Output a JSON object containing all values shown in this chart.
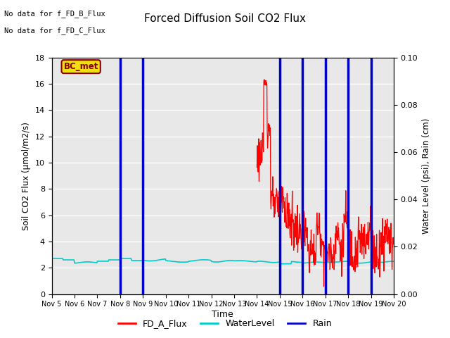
{
  "title": "Forced Diffusion Soil CO2 Flux",
  "xlabel": "Time",
  "ylabel_left": "Soil CO2 Flux (μmol/m2/s)",
  "ylabel_right": "Water Level (psi), Rain (cm)",
  "no_data_text_1": "No data for f_FD_B_Flux",
  "no_data_text_2": "No data for f_FD_C_Flux",
  "bc_met_label": "BC_met",
  "ylim_left": [
    0,
    18
  ],
  "ylim_right": [
    0.0,
    0.1
  ],
  "yticks_left": [
    0,
    2,
    4,
    6,
    8,
    10,
    12,
    14,
    16,
    18
  ],
  "yticks_right": [
    0.0,
    0.02,
    0.04,
    0.06,
    0.08,
    0.1
  ],
  "plot_bg_color": "#e8e8e8",
  "rain_days": [
    3,
    4,
    10,
    11,
    12,
    13,
    14
  ],
  "legend_entries": [
    "FD_A_Flux",
    "WaterLevel",
    "Rain"
  ],
  "legend_colors": [
    "#ff0000",
    "#00cccc",
    "#0000cc"
  ],
  "xmin": 0,
  "xmax": 15,
  "xtick_labels": [
    "Nov 5",
    "Nov 6",
    "Nov 7",
    "Nov 8",
    "Nov 9",
    "Nov 10",
    "Nov 11",
    "Nov 12",
    "Nov 13",
    "Nov 14",
    "Nov 15",
    "Nov 16",
    "Nov 17",
    "Nov 18",
    "Nov 19",
    "Nov 20"
  ]
}
